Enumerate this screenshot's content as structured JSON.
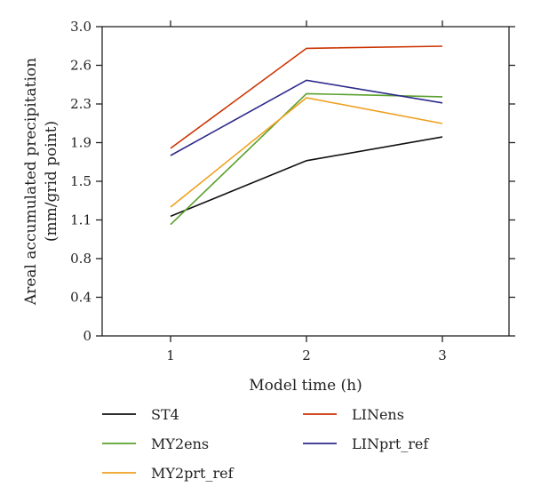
{
  "chart_data": {
    "type": "line",
    "x": [
      1,
      2,
      3
    ],
    "xticks": [
      "1",
      "2",
      "3"
    ],
    "yticks": [
      "0",
      "0.4",
      "0.8",
      "1.1",
      "1.5",
      "1.9",
      "2.3",
      "2.6",
      "3.0"
    ],
    "ylim": [
      0,
      3.0
    ],
    "xlabel": "Model time (h)",
    "ylabel": "Areal accumulated precipitation",
    "ylabel_unit": "(mm/grid point)",
    "grid": false,
    "legend_position": "bottom",
    "series": [
      {
        "name": "ST4",
        "color": "#111111",
        "values": [
          1.16,
          1.7,
          1.93
        ]
      },
      {
        "name": "LINens",
        "color": "#cc3300",
        "values": [
          1.82,
          2.79,
          2.81
        ]
      },
      {
        "name": "MY2ens",
        "color": "#5aa02c",
        "values": [
          1.08,
          2.35,
          2.32
        ]
      },
      {
        "name": "LINprt_ref",
        "color": "#2e2a8c",
        "values": [
          1.75,
          2.48,
          2.26
        ]
      },
      {
        "name": "MY2prt_ref",
        "color": "#f0a020",
        "values": [
          1.25,
          2.31,
          2.06
        ]
      }
    ]
  }
}
